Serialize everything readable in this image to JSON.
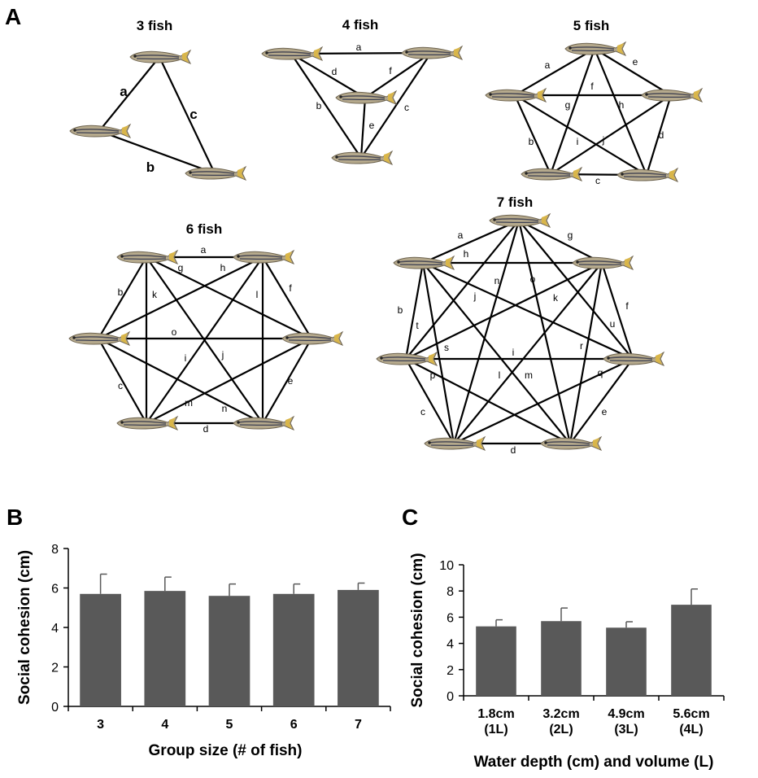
{
  "panels": {
    "a_label": "A",
    "b_label": "B",
    "c_label": "C"
  },
  "networks": [
    {
      "title": "3 fish",
      "fish": 3,
      "edges": [
        "a",
        "b",
        "c"
      ]
    },
    {
      "title": "4 fish",
      "fish": 4,
      "edges": [
        "a",
        "b",
        "c",
        "d",
        "e",
        "f"
      ]
    },
    {
      "title": "5 fish",
      "fish": 5,
      "edges": [
        "a",
        "b",
        "c",
        "d",
        "e",
        "f",
        "g",
        "h",
        "i",
        "j"
      ]
    },
    {
      "title": "6 fish",
      "fish": 6,
      "edges": [
        "a",
        "b",
        "c",
        "d",
        "e",
        "f",
        "g",
        "h",
        "i",
        "j",
        "k",
        "l",
        "m",
        "n",
        "o"
      ]
    },
    {
      "title": "7 fish",
      "fish": 7,
      "edges": [
        "a",
        "b",
        "c",
        "d",
        "e",
        "f",
        "g",
        "h",
        "i",
        "j",
        "k",
        "l",
        "m",
        "n",
        "o",
        "p",
        "q",
        "r",
        "s",
        "t",
        "u"
      ]
    }
  ],
  "chart_data": [
    {
      "type": "bar",
      "panel": "B",
      "categories": [
        "3",
        "4",
        "5",
        "6",
        "7"
      ],
      "values": [
        5.7,
        5.85,
        5.6,
        5.7,
        5.9
      ],
      "errors": [
        1.0,
        0.7,
        0.6,
        0.5,
        0.35
      ],
      "xlabel": "Group size (# of fish)",
      "ylabel": "Social cohesion (cm)",
      "ylim": [
        0,
        8
      ],
      "yticks": [
        "0",
        "2",
        "4",
        "6",
        "8"
      ],
      "bar_color": "#595959"
    },
    {
      "type": "bar",
      "panel": "C",
      "categories": [
        [
          "1.8cm",
          "(1L)"
        ],
        [
          "3.2cm",
          "(2L)"
        ],
        [
          "4.9cm",
          "(3L)"
        ],
        [
          "5.6cm",
          "(4L)"
        ]
      ],
      "values": [
        5.3,
        5.7,
        5.2,
        6.95
      ],
      "errors": [
        0.5,
        1.0,
        0.45,
        1.2
      ],
      "xlabel": "Water depth (cm) and volume (L)",
      "ylabel": "Social cohesion (cm)",
      "ylim": [
        0,
        10
      ],
      "yticks": [
        "0",
        "2",
        "4",
        "6",
        "8",
        "10"
      ],
      "bar_color": "#595959"
    }
  ]
}
